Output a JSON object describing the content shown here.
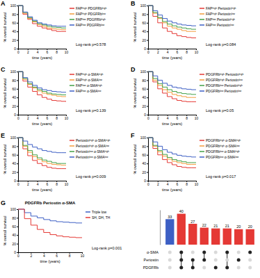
{
  "chart_data": [
    {
      "type": "line",
      "panel": "A",
      "xlabel": "time (years)",
      "ylabel": "% overall survival",
      "annotations": [
        "Log-rank p=0.578"
      ],
      "x": [
        0,
        1,
        2,
        3,
        4,
        5,
        6,
        7,
        8,
        9,
        10
      ],
      "xlim": [
        0,
        10
      ],
      "xticks": [
        0,
        2,
        4,
        6,
        8,
        10
      ],
      "ylim": [
        0,
        100
      ],
      "yticks": [
        0,
        20,
        40,
        60,
        80,
        100
      ],
      "grid": false,
      "legend": "right",
      "line_style": "step",
      "series": [
        {
          "name": "FAPʰⁱᵍʰ PDGFRbʰⁱᵍʰ",
          "color": "#e53935",
          "values": [
            100,
            80,
            68,
            58,
            52,
            48,
            45,
            42,
            40,
            40,
            40
          ]
        },
        {
          "name": "FAPʰⁱᵍʰ PDGFRbˡᵒʷ",
          "color": "#f39c3d",
          "values": [
            100,
            82,
            70,
            62,
            56,
            52,
            48,
            46,
            45,
            44,
            44
          ]
        },
        {
          "name": "FAPˡᵒʷ PDGFRbʰⁱᵍʰ",
          "color": "#43a047",
          "values": [
            100,
            84,
            72,
            64,
            58,
            55,
            52,
            50,
            49,
            48,
            48
          ]
        },
        {
          "name": "FAPˡᵒʷ PDGFRbˡᵒʷ",
          "color": "#3d5fc4",
          "values": [
            100,
            85,
            74,
            66,
            60,
            57,
            55,
            53,
            52,
            52,
            52
          ]
        }
      ]
    },
    {
      "type": "line",
      "panel": "B",
      "xlabel": "time (years)",
      "ylabel": "% overall survival",
      "annotations": [
        "Log-rank p=0.084"
      ],
      "x": [
        0,
        1,
        2,
        3,
        4,
        5,
        6,
        7,
        8,
        9,
        10
      ],
      "xlim": [
        0,
        10
      ],
      "xticks": [
        0,
        2,
        4,
        6,
        8,
        10
      ],
      "ylim": [
        0,
        100
      ],
      "yticks": [
        0,
        20,
        40,
        60,
        80,
        100
      ],
      "grid": false,
      "legend": "right",
      "line_style": "step",
      "series": [
        {
          "name": "FAPʰⁱᵍʰ Periostinʰⁱᵍʰ",
          "color": "#e53935",
          "values": [
            100,
            75,
            60,
            48,
            40,
            35,
            30,
            28,
            26,
            25,
            25
          ]
        },
        {
          "name": "FAPʰⁱᵍʰ Periostinˡᵒʷ",
          "color": "#f39c3d",
          "values": [
            100,
            82,
            70,
            60,
            52,
            48,
            45,
            42,
            40,
            40,
            40
          ]
        },
        {
          "name": "FAPˡᵒʷ Periostinʰⁱᵍʰ",
          "color": "#43a047",
          "values": [
            100,
            84,
            72,
            63,
            57,
            53,
            50,
            48,
            46,
            45,
            45
          ]
        },
        {
          "name": "FAPˡᵒʷ Periostinˡᵒʷ",
          "color": "#3d5fc4",
          "values": [
            100,
            88,
            78,
            70,
            64,
            60,
            57,
            55,
            54,
            53,
            53
          ]
        }
      ]
    },
    {
      "type": "line",
      "panel": "C",
      "xlabel": "time (years)",
      "ylabel": "% overall survival",
      "annotations": [
        "Log-rank p=0.139"
      ],
      "x": [
        0,
        1,
        2,
        3,
        4,
        5,
        6,
        7,
        8,
        9,
        10
      ],
      "xlim": [
        0,
        10
      ],
      "xticks": [
        0,
        2,
        4,
        6,
        8,
        10
      ],
      "ylim": [
        0,
        100
      ],
      "yticks": [
        0,
        20,
        40,
        60,
        80,
        100
      ],
      "grid": false,
      "legend": "right",
      "line_style": "step",
      "series": [
        {
          "name": "FAPʰⁱᵍʰ α-SMAʰⁱᵍʰ",
          "color": "#e53935",
          "values": [
            100,
            78,
            64,
            54,
            46,
            40,
            36,
            33,
            32,
            31,
            30
          ]
        },
        {
          "name": "FAPʰⁱᵍʰ α-SMAˡᵒʷ",
          "color": "#f39c3d",
          "values": [
            100,
            82,
            70,
            62,
            55,
            50,
            47,
            45,
            43,
            42,
            42
          ]
        },
        {
          "name": "FAPˡᵒʷ α-SMAʰⁱᵍʰ",
          "color": "#43a047",
          "values": [
            100,
            84,
            72,
            64,
            58,
            54,
            50,
            48,
            47,
            46,
            46
          ]
        },
        {
          "name": "FAPˡᵒʷ α-SMAˡᵒʷ",
          "color": "#3d5fc4",
          "values": [
            100,
            86,
            76,
            68,
            62,
            58,
            56,
            54,
            53,
            52,
            52
          ]
        }
      ]
    },
    {
      "type": "line",
      "panel": "D",
      "xlabel": "time (years)",
      "ylabel": "% overall survival",
      "annotations": [
        "Log-rank p=0.05"
      ],
      "x": [
        0,
        1,
        2,
        3,
        4,
        5,
        6,
        7,
        8,
        9,
        10
      ],
      "xlim": [
        0,
        10
      ],
      "xticks": [
        0,
        2,
        4,
        6,
        8,
        10
      ],
      "ylim": [
        0,
        100
      ],
      "yticks": [
        0,
        20,
        40,
        60,
        80,
        100
      ],
      "grid": false,
      "legend": "right",
      "line_style": "step",
      "series": [
        {
          "name": "PDGFRbʰⁱᵍʰ Periostinʰⁱᵍʰ",
          "color": "#e53935",
          "values": [
            100,
            76,
            60,
            50,
            42,
            37,
            33,
            31,
            30,
            30,
            30
          ]
        },
        {
          "name": "PDGFRbʰⁱᵍʰ Periostinˡᵒʷ",
          "color": "#f39c3d",
          "values": [
            100,
            80,
            68,
            58,
            52,
            47,
            44,
            42,
            40,
            40,
            40
          ]
        },
        {
          "name": "PDGFRbˡᵒʷ Periostinʰⁱᵍʰ",
          "color": "#43a047",
          "values": [
            100,
            84,
            72,
            64,
            58,
            54,
            51,
            49,
            48,
            47,
            47
          ]
        },
        {
          "name": "PDGFRbˡᵒʷ Periostinˡᵒʷ",
          "color": "#3d5fc4",
          "values": [
            100,
            90,
            80,
            73,
            68,
            64,
            62,
            60,
            59,
            58,
            58
          ]
        }
      ]
    },
    {
      "type": "line",
      "panel": "E",
      "xlabel": "time (years)",
      "ylabel": "% overall survival",
      "annotations": [
        "Log-rank p=0.009"
      ],
      "x": [
        0,
        1,
        2,
        3,
        4,
        5,
        6,
        7,
        8,
        9,
        10
      ],
      "xlim": [
        0,
        10
      ],
      "xticks": [
        0,
        2,
        4,
        6,
        8,
        10
      ],
      "ylim": [
        0,
        100
      ],
      "yticks": [
        0,
        20,
        40,
        60,
        80,
        100
      ],
      "grid": false,
      "legend": "right",
      "line_style": "step",
      "series": [
        {
          "name": "Periostinʰⁱᵍʰ α-SMAʰⁱᵍʰ",
          "color": "#e53935",
          "values": [
            100,
            74,
            58,
            47,
            40,
            35,
            31,
            29,
            28,
            28,
            28
          ]
        },
        {
          "name": "Periostinʰⁱᵍʰ α-SMAˡᵒʷ",
          "color": "#f39c3d",
          "values": [
            100,
            80,
            66,
            56,
            49,
            44,
            40,
            38,
            37,
            36,
            36
          ]
        },
        {
          "name": "Periostinˡᵒʷ α-SMAʰⁱᵍʰ",
          "color": "#43a047",
          "values": [
            100,
            82,
            70,
            60,
            53,
            48,
            45,
            42,
            40,
            40,
            40
          ]
        },
        {
          "name": "Periostinˡᵒʷ α-SMAˡᵒʷ",
          "color": "#3d5fc4",
          "values": [
            100,
            92,
            84,
            78,
            74,
            70,
            68,
            66,
            65,
            65,
            65
          ]
        }
      ]
    },
    {
      "type": "line",
      "panel": "F",
      "xlabel": "time (years)",
      "ylabel": "% overall survival",
      "annotations": [
        "Log-rank p=0.017"
      ],
      "x": [
        0,
        1,
        2,
        3,
        4,
        5,
        6,
        7,
        8,
        9,
        10
      ],
      "xlim": [
        0,
        10
      ],
      "xticks": [
        0,
        2,
        4,
        6,
        8,
        10
      ],
      "ylim": [
        0,
        100
      ],
      "yticks": [
        0,
        20,
        40,
        60,
        80,
        100
      ],
      "grid": false,
      "legend": "right",
      "line_style": "step",
      "series": [
        {
          "name": "PDGFRbʰⁱᵍʰ α-SMAʰⁱᵍʰ",
          "color": "#e53935",
          "values": [
            100,
            75,
            60,
            49,
            42,
            37,
            33,
            31,
            30,
            30,
            30
          ]
        },
        {
          "name": "PDGFRbʰⁱᵍʰ α-SMAˡᵒʷ",
          "color": "#f39c3d",
          "values": [
            100,
            80,
            67,
            57,
            50,
            45,
            42,
            40,
            38,
            38,
            38
          ]
        },
        {
          "name": "PDGFRbˡᵒʷ α-SMAʰⁱᵍʰ",
          "color": "#43a047",
          "values": [
            100,
            82,
            70,
            61,
            54,
            49,
            46,
            44,
            42,
            42,
            42
          ]
        },
        {
          "name": "PDGFRbˡᵒʷ α-SMAˡᵒʷ",
          "color": "#3d5fc4",
          "values": [
            100,
            90,
            80,
            72,
            66,
            62,
            59,
            57,
            56,
            55,
            55
          ]
        }
      ]
    },
    {
      "type": "line",
      "panel": "G",
      "title": "PDGFRb Periostin α-SMA",
      "xlabel": "time (years)",
      "ylabel": "% overall survival",
      "annotations": [
        "Log-rank p=0.001"
      ],
      "x": [
        0,
        1,
        2,
        3,
        4,
        5,
        6,
        7,
        8,
        9,
        10
      ],
      "xlim": [
        0,
        10
      ],
      "xticks": [
        0,
        2,
        4,
        6,
        8,
        10
      ],
      "ylim": [
        0,
        100
      ],
      "yticks": [
        0,
        20,
        40,
        60,
        80,
        100
      ],
      "grid": false,
      "legend": "right",
      "line_style": "step",
      "series": [
        {
          "name": "Triple low",
          "color": "#3d5fc4",
          "values": [
            100,
            92,
            84,
            80,
            76,
            73,
            71,
            70,
            69,
            68,
            68
          ]
        },
        {
          "name": "SH, DH, TH",
          "color": "#e53935",
          "values": [
            100,
            78,
            63,
            53,
            46,
            41,
            38,
            36,
            35,
            34,
            34
          ]
        }
      ]
    },
    {
      "type": "bar",
      "categories": [
        null,
        null,
        null,
        null,
        null,
        null,
        null,
        null
      ],
      "values": [
        33,
        40,
        27,
        22,
        21,
        21,
        20,
        20
      ],
      "colors": [
        "#3d5fc4",
        "#e53935",
        "#e53935",
        "#e53935",
        "#e53935",
        "#e53935",
        "#e53935",
        "#e53935"
      ],
      "ylim": [
        0,
        45
      ],
      "data_labels": true,
      "tick_labels": false,
      "set_names": [
        "α-SMA",
        "Periostin",
        "PDGFRb"
      ],
      "membership": [
        [
          0,
          1,
          0,
          1,
          0,
          1,
          0,
          1
        ],
        [
          0,
          1,
          1,
          1,
          0,
          0,
          1,
          0
        ],
        [
          0,
          1,
          1,
          0,
          1,
          1,
          0,
          0
        ]
      ]
    }
  ]
}
